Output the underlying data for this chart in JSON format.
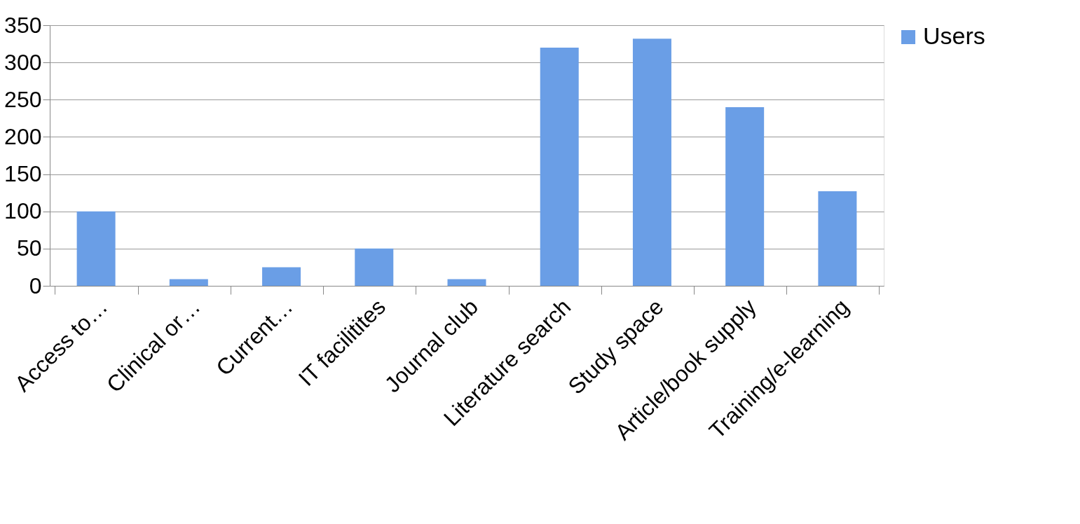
{
  "chart_data": {
    "type": "bar",
    "categories": [
      "Access to…",
      "Clinical or…",
      "Current…",
      "IT facilitites",
      "Journal club",
      "Literature search",
      "Study space",
      "Article/book supply",
      "Training/e-learning"
    ],
    "series": [
      {
        "name": "Users",
        "color": "#6a9ee6",
        "values": [
          100,
          9,
          25,
          50,
          9,
          320,
          332,
          240,
          127
        ]
      }
    ],
    "ylim": [
      0,
      350
    ],
    "yticks": [
      0,
      50,
      100,
      150,
      200,
      250,
      300,
      350
    ],
    "grid": "y",
    "legend": "right"
  }
}
